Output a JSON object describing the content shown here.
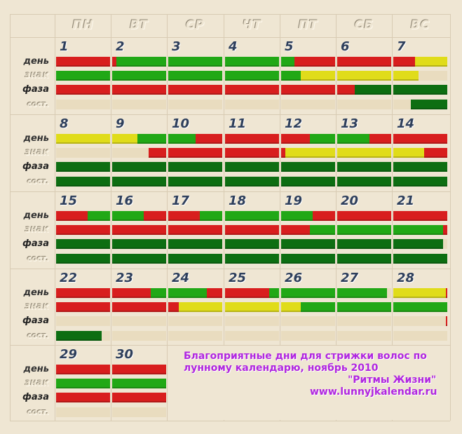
{
  "colors": {
    "red": "#d81e1e",
    "green": "#21a816",
    "yellow": "#e0dc1a",
    "dark_green": "#0d6e12",
    "empty": "#e9dcbf",
    "caption": "#b026e0"
  },
  "weekdays": [
    "ПН",
    "ВТ",
    "СР",
    "ЧТ",
    "ПТ",
    "СБ",
    "ВС"
  ],
  "row_labels": [
    "день",
    "знак",
    "фаза",
    "сост."
  ],
  "caption": {
    "line1": "Благоприятные дни для стрижки волос по",
    "line2": "лунному календарю, ноябрь 2010",
    "line3": "\"Ритмы Жизни\"",
    "line4": "www.lunnyjkalendar.ru"
  },
  "days": [
    {
      "n": "1",
      "rows": [
        [
          [
            "R",
            1
          ]
        ],
        [
          [
            "G",
            1
          ]
        ],
        [
          [
            "R",
            1
          ]
        ],
        [
          [
            "E",
            1
          ]
        ]
      ]
    },
    {
      "n": "2",
      "rows": [
        [
          [
            "R",
            0.08
          ],
          [
            "G",
            0.92
          ]
        ],
        [
          [
            "G",
            1
          ]
        ],
        [
          [
            "R",
            1
          ]
        ],
        [
          [
            "E",
            1
          ]
        ]
      ]
    },
    {
      "n": "3",
      "rows": [
        [
          [
            "G",
            1
          ]
        ],
        [
          [
            "G",
            1
          ]
        ],
        [
          [
            "R",
            1
          ]
        ],
        [
          [
            "E",
            1
          ]
        ]
      ]
    },
    {
      "n": "4",
      "rows": [
        [
          [
            "G",
            1
          ]
        ],
        [
          [
            "G",
            1
          ]
        ],
        [
          [
            "R",
            1
          ]
        ],
        [
          [
            "E",
            1
          ]
        ]
      ]
    },
    {
      "n": "5",
      "rows": [
        [
          [
            "G",
            0.25
          ],
          [
            "R",
            0.75
          ]
        ],
        [
          [
            "G",
            0.37
          ],
          [
            "Y",
            0.63
          ]
        ],
        [
          [
            "R",
            1
          ]
        ],
        [
          [
            "E",
            1
          ]
        ]
      ]
    },
    {
      "n": "6",
      "rows": [
        [
          [
            "R",
            1
          ]
        ],
        [
          [
            "Y",
            1
          ]
        ],
        [
          [
            "R",
            0.33
          ],
          [
            "D",
            0.67
          ]
        ],
        [
          [
            "E",
            1
          ]
        ]
      ]
    },
    {
      "n": "7",
      "rows": [
        [
          [
            "R",
            0.4
          ],
          [
            "Y",
            0.6
          ]
        ],
        [
          [
            "Y",
            0.47
          ],
          [
            "E",
            0.53
          ]
        ],
        [
          [
            "D",
            1
          ]
        ],
        [
          [
            "E",
            0.32
          ],
          [
            "D",
            0.68
          ]
        ]
      ]
    },
    {
      "n": "8",
      "rows": [
        [
          [
            "Y",
            1
          ]
        ],
        [
          [
            "E",
            1
          ]
        ],
        [
          [
            "D",
            1
          ]
        ],
        [
          [
            "D",
            1
          ]
        ]
      ]
    },
    {
      "n": "9",
      "rows": [
        [
          [
            "Y",
            0.47
          ],
          [
            "G",
            0.53
          ]
        ],
        [
          [
            "E",
            0.68
          ],
          [
            "R",
            0.32
          ]
        ],
        [
          [
            "D",
            1
          ]
        ],
        [
          [
            "D",
            1
          ]
        ]
      ]
    },
    {
      "n": "10",
      "rows": [
        [
          [
            "G",
            0.5
          ],
          [
            "R",
            0.5
          ]
        ],
        [
          [
            "R",
            1
          ]
        ],
        [
          [
            "D",
            1
          ]
        ],
        [
          [
            "D",
            1
          ]
        ]
      ]
    },
    {
      "n": "11",
      "rows": [
        [
          [
            "R",
            1
          ]
        ],
        [
          [
            "R",
            1
          ]
        ],
        [
          [
            "D",
            1
          ]
        ],
        [
          [
            "D",
            1
          ]
        ]
      ]
    },
    {
      "n": "12",
      "rows": [
        [
          [
            "R",
            0.53
          ],
          [
            "G",
            0.47
          ]
        ],
        [
          [
            "R",
            0.08
          ],
          [
            "Y",
            0.92
          ]
        ],
        [
          [
            "D",
            1
          ]
        ],
        [
          [
            "D",
            1
          ]
        ]
      ]
    },
    {
      "n": "13",
      "rows": [
        [
          [
            "G",
            0.6
          ],
          [
            "R",
            0.4
          ]
        ],
        [
          [
            "Y",
            1
          ]
        ],
        [
          [
            "D",
            1
          ]
        ],
        [
          [
            "D",
            1
          ]
        ]
      ]
    },
    {
      "n": "14",
      "rows": [
        [
          [
            "R",
            1
          ]
        ],
        [
          [
            "Y",
            0.57
          ],
          [
            "R",
            0.43
          ]
        ],
        [
          [
            "D",
            1
          ]
        ],
        [
          [
            "D",
            1
          ]
        ]
      ]
    },
    {
      "n": "15",
      "rows": [
        [
          [
            "R",
            0.58
          ],
          [
            "G",
            0.42
          ]
        ],
        [
          [
            "R",
            1
          ]
        ],
        [
          [
            "D",
            1
          ]
        ],
        [
          [
            "D",
            1
          ]
        ]
      ]
    },
    {
      "n": "16",
      "rows": [
        [
          [
            "G",
            0.58
          ],
          [
            "R",
            0.42
          ]
        ],
        [
          [
            "R",
            1
          ]
        ],
        [
          [
            "D",
            1
          ]
        ],
        [
          [
            "D",
            1
          ]
        ]
      ]
    },
    {
      "n": "17",
      "rows": [
        [
          [
            "R",
            0.58
          ],
          [
            "G",
            0.42
          ]
        ],
        [
          [
            "R",
            1
          ]
        ],
        [
          [
            "D",
            1
          ]
        ],
        [
          [
            "D",
            1
          ]
        ]
      ]
    },
    {
      "n": "18",
      "rows": [
        [
          [
            "G",
            1
          ]
        ],
        [
          [
            "R",
            1
          ]
        ],
        [
          [
            "D",
            1
          ]
        ],
        [
          [
            "D",
            1
          ]
        ]
      ]
    },
    {
      "n": "19",
      "rows": [
        [
          [
            "G",
            0.58
          ],
          [
            "R",
            0.42
          ]
        ],
        [
          [
            "R",
            0.53
          ],
          [
            "G",
            0.47
          ]
        ],
        [
          [
            "D",
            1
          ]
        ],
        [
          [
            "D",
            1
          ]
        ]
      ]
    },
    {
      "n": "20",
      "rows": [
        [
          [
            "R",
            1
          ]
        ],
        [
          [
            "G",
            1
          ]
        ],
        [
          [
            "D",
            1
          ]
        ],
        [
          [
            "D",
            1
          ]
        ]
      ]
    },
    {
      "n": "21",
      "rows": [
        [
          [
            "R",
            1
          ]
        ],
        [
          [
            "G",
            0.92
          ],
          [
            "R",
            0.08
          ]
        ],
        [
          [
            "D",
            0.92
          ],
          [
            "E",
            0.08
          ]
        ],
        [
          [
            "D",
            1
          ]
        ]
      ]
    },
    {
      "n": "22",
      "rows": [
        [
          [
            "R",
            1
          ]
        ],
        [
          [
            "R",
            1
          ]
        ],
        [
          [
            "E",
            1
          ]
        ],
        [
          [
            "D",
            0.84
          ],
          [
            "E",
            0.16
          ]
        ]
      ]
    },
    {
      "n": "23",
      "rows": [
        [
          [
            "R",
            0.72
          ],
          [
            "G",
            0.28
          ]
        ],
        [
          [
            "R",
            1
          ]
        ],
        [
          [
            "E",
            1
          ]
        ],
        [
          [
            "E",
            1
          ]
        ]
      ]
    },
    {
      "n": "24",
      "rows": [
        [
          [
            "G",
            0.72
          ],
          [
            "R",
            0.28
          ]
        ],
        [
          [
            "R",
            0.19
          ],
          [
            "Y",
            0.81
          ]
        ],
        [
          [
            "E",
            1
          ]
        ],
        [
          [
            "E",
            1
          ]
        ]
      ]
    },
    {
      "n": "25",
      "rows": [
        [
          [
            "R",
            0.82
          ],
          [
            "G",
            0.18
          ]
        ],
        [
          [
            "Y",
            1
          ]
        ],
        [
          [
            "E",
            1
          ]
        ],
        [
          [
            "E",
            1
          ]
        ]
      ]
    },
    {
      "n": "26",
      "rows": [
        [
          [
            "G",
            1
          ]
        ],
        [
          [
            "Y",
            0.37
          ],
          [
            "G",
            0.63
          ]
        ],
        [
          [
            "E",
            1
          ]
        ],
        [
          [
            "E",
            1
          ]
        ]
      ]
    },
    {
      "n": "27",
      "rows": [
        [
          [
            "G",
            0.92
          ],
          [
            "E",
            0.08
          ]
        ],
        [
          [
            "G",
            1
          ]
        ],
        [
          [
            "E",
            1
          ]
        ],
        [
          [
            "E",
            1
          ]
        ]
      ]
    },
    {
      "n": "28",
      "rows": [
        [
          [
            "Y",
            0.97
          ],
          [
            "R",
            0.03
          ]
        ],
        [
          [
            "G",
            1
          ]
        ],
        [
          [
            "E",
            0.97
          ],
          [
            "R",
            0.03
          ]
        ],
        [
          [
            "E",
            1
          ]
        ]
      ]
    },
    {
      "n": "29",
      "rows": [
        [
          [
            "R",
            1
          ]
        ],
        [
          [
            "G",
            1
          ]
        ],
        [
          [
            "R",
            1
          ]
        ],
        [
          [
            "E",
            1
          ]
        ]
      ]
    },
    {
      "n": "30",
      "rows": [
        [
          [
            "R",
            1
          ]
        ],
        [
          [
            "G",
            1
          ]
        ],
        [
          [
            "R",
            1
          ]
        ],
        [
          [
            "E",
            1
          ]
        ]
      ]
    }
  ]
}
